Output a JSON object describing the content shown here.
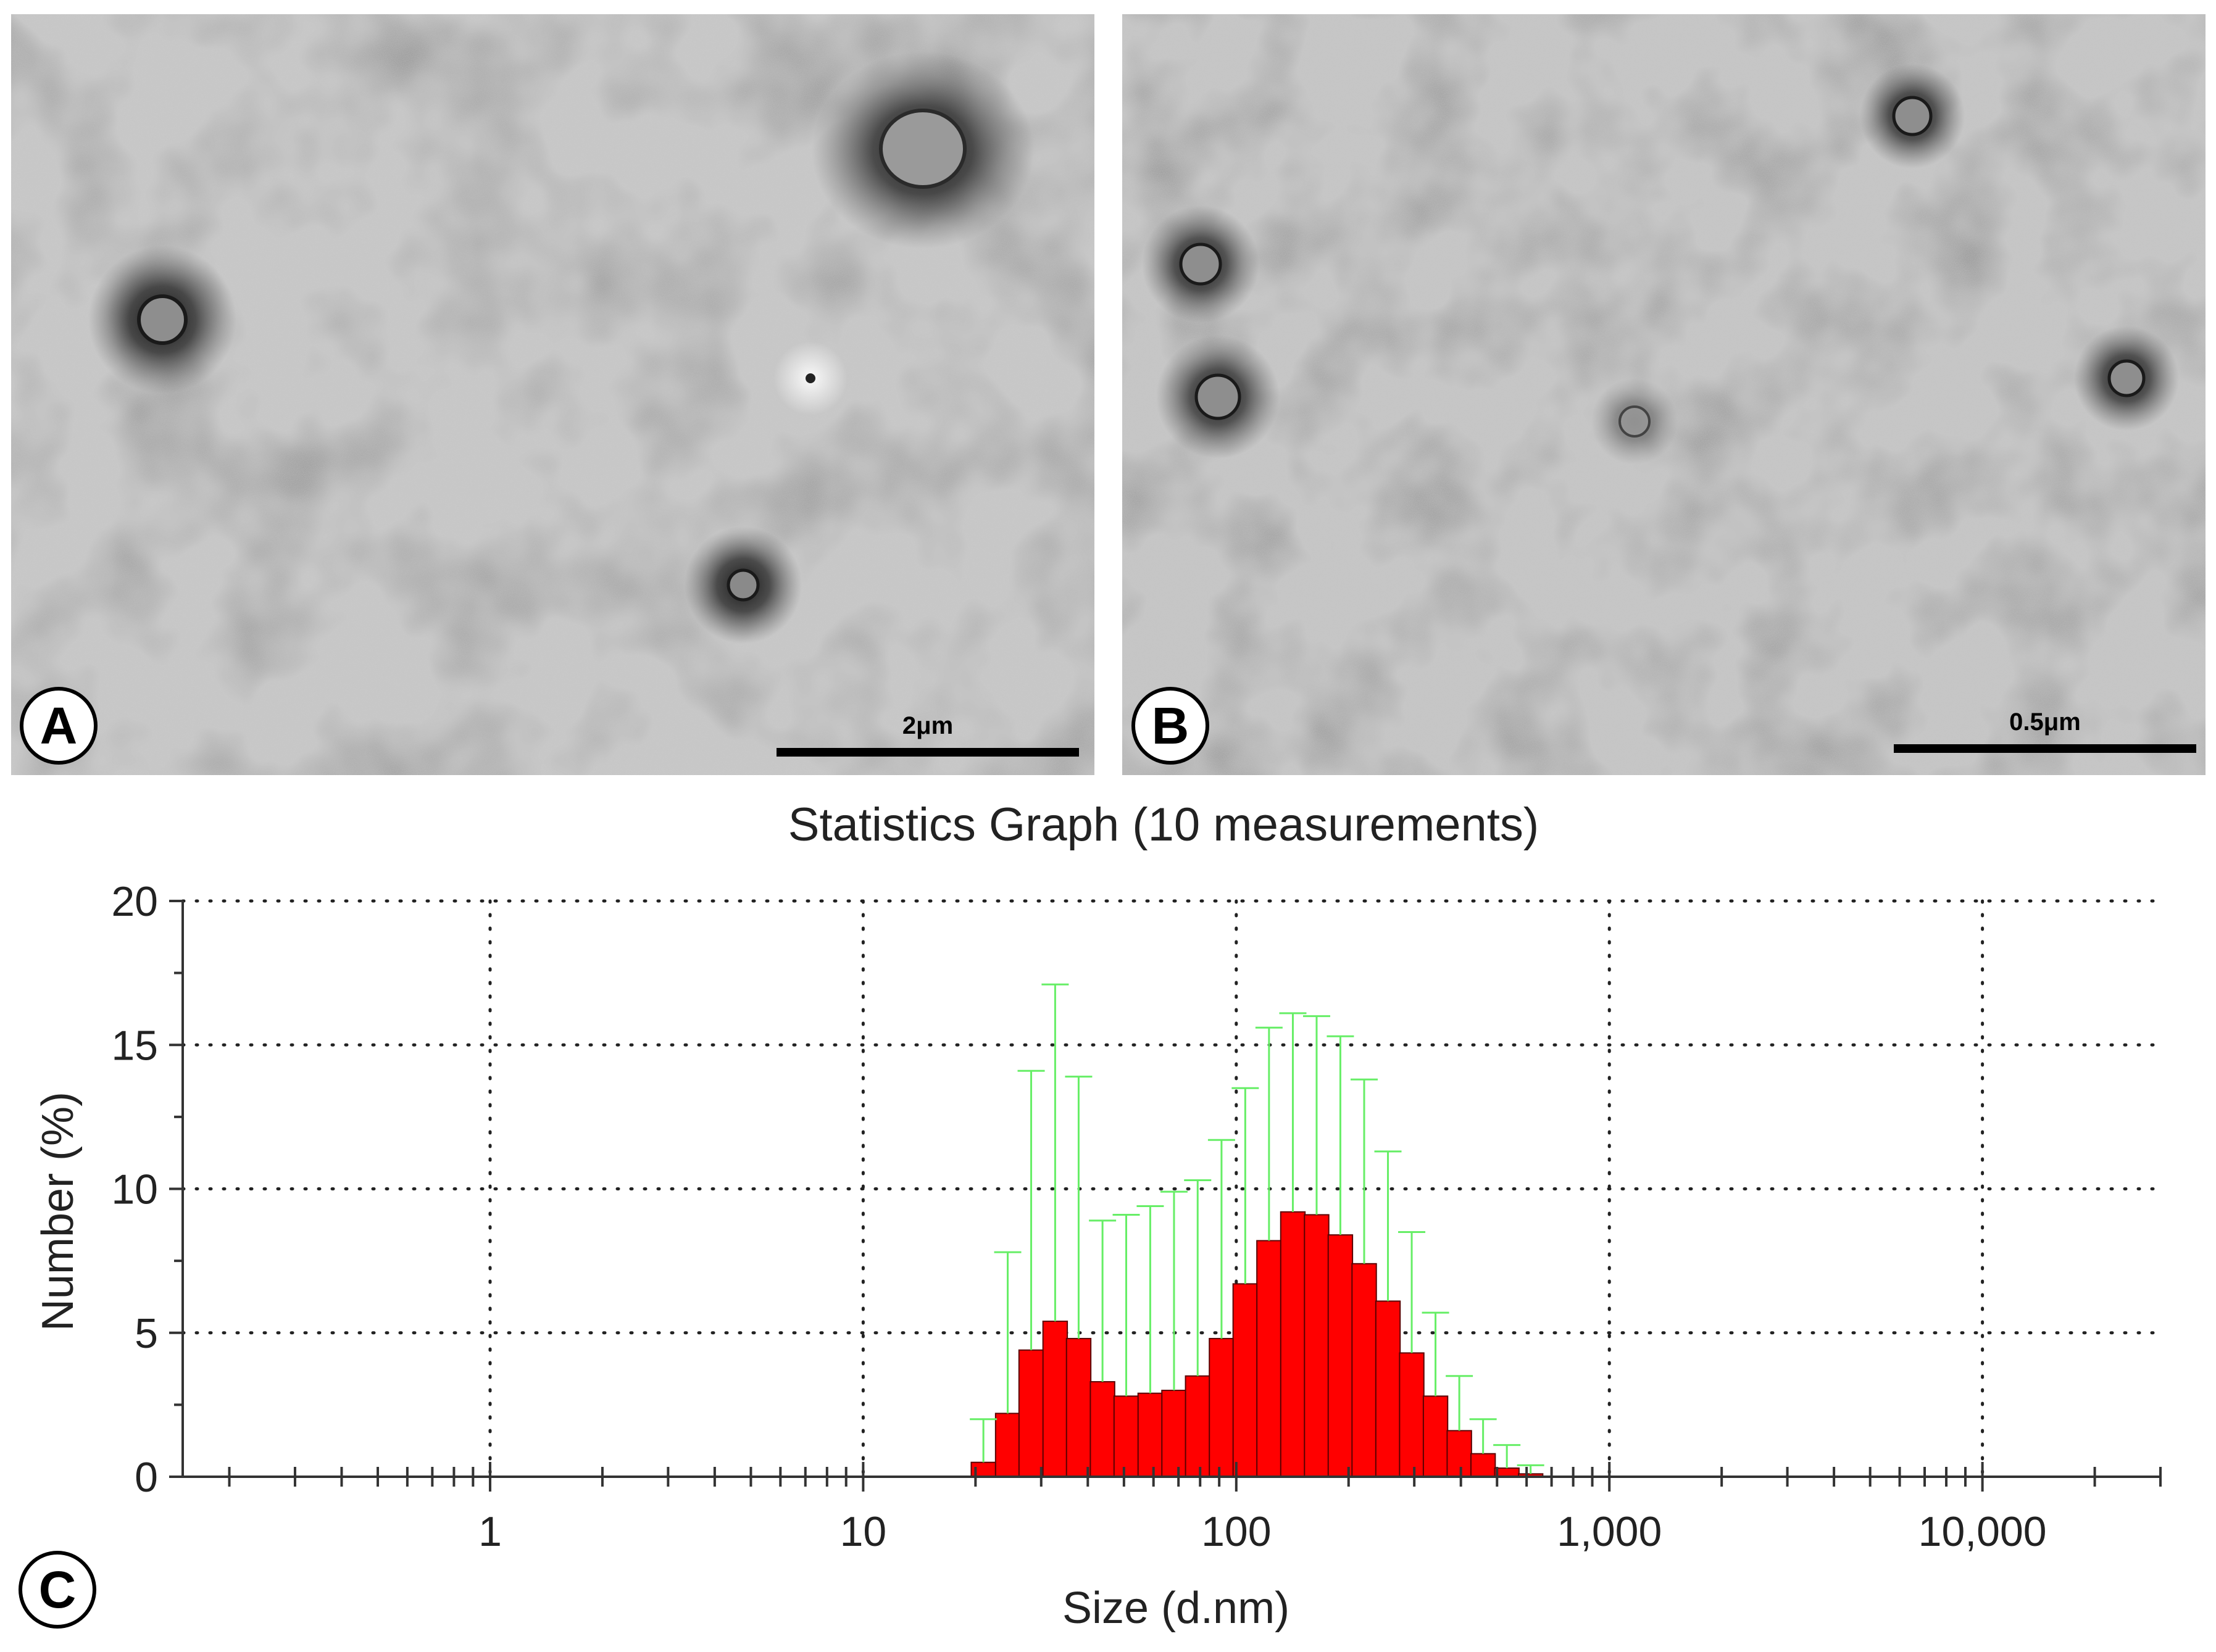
{
  "panels": [
    {
      "letter": "A",
      "scale_bar": "2μm"
    },
    {
      "letter": "B",
      "scale_bar": "0.5μm"
    },
    {
      "letter": "C"
    }
  ],
  "chart_data": {
    "type": "bar",
    "title": "Statistics Graph (10 measurements)",
    "xlabel": "Size (d.nm)",
    "ylabel": "Number (%)",
    "x_scale": "log",
    "xlim": [
      0.15,
      30000
    ],
    "ylim": [
      0,
      20
    ],
    "x_ticks": [
      1,
      10,
      100,
      1000,
      10000
    ],
    "x_tick_labels": [
      "1",
      "10",
      "100",
      "1,000",
      "10,000"
    ],
    "y_ticks": [
      0,
      5,
      10,
      15,
      20
    ],
    "y_tick_labels": [
      "0",
      "5",
      "10",
      "15",
      "20"
    ],
    "grid": "dotted",
    "bar_color": "#ff0000",
    "error_bar_color": "#66ee66",
    "bins": [
      {
        "size": 21.0,
        "value": 0.5,
        "err_high": 2.0
      },
      {
        "size": 24.4,
        "value": 2.2,
        "err_high": 7.8
      },
      {
        "size": 28.2,
        "value": 4.4,
        "err_high": 14.1
      },
      {
        "size": 32.7,
        "value": 5.4,
        "err_high": 17.1
      },
      {
        "size": 37.8,
        "value": 4.8,
        "err_high": 13.9
      },
      {
        "size": 43.8,
        "value": 3.3,
        "err_high": 8.9
      },
      {
        "size": 50.7,
        "value": 2.8,
        "err_high": 9.1
      },
      {
        "size": 58.8,
        "value": 2.9,
        "err_high": 9.4
      },
      {
        "size": 68.1,
        "value": 3.0,
        "err_high": 9.9
      },
      {
        "size": 78.8,
        "value": 3.5,
        "err_high": 10.3
      },
      {
        "size": 91.3,
        "value": 4.8,
        "err_high": 11.7
      },
      {
        "size": 105.7,
        "value": 6.7,
        "err_high": 13.5
      },
      {
        "size": 122.4,
        "value": 8.2,
        "err_high": 15.6
      },
      {
        "size": 141.8,
        "value": 9.2,
        "err_high": 16.1
      },
      {
        "size": 164.2,
        "value": 9.1,
        "err_high": 16.0
      },
      {
        "size": 190.1,
        "value": 8.4,
        "err_high": 15.3
      },
      {
        "size": 220.2,
        "value": 7.4,
        "err_high": 13.8
      },
      {
        "size": 255.0,
        "value": 6.1,
        "err_high": 11.3
      },
      {
        "size": 295.3,
        "value": 4.3,
        "err_high": 8.5
      },
      {
        "size": 342.0,
        "value": 2.8,
        "err_high": 5.7
      },
      {
        "size": 396.1,
        "value": 1.6,
        "err_high": 3.5
      },
      {
        "size": 458.7,
        "value": 0.8,
        "err_high": 2.0
      },
      {
        "size": 531.2,
        "value": 0.3,
        "err_high": 1.1
      },
      {
        "size": 615.1,
        "value": 0.1,
        "err_high": 0.4
      }
    ]
  }
}
